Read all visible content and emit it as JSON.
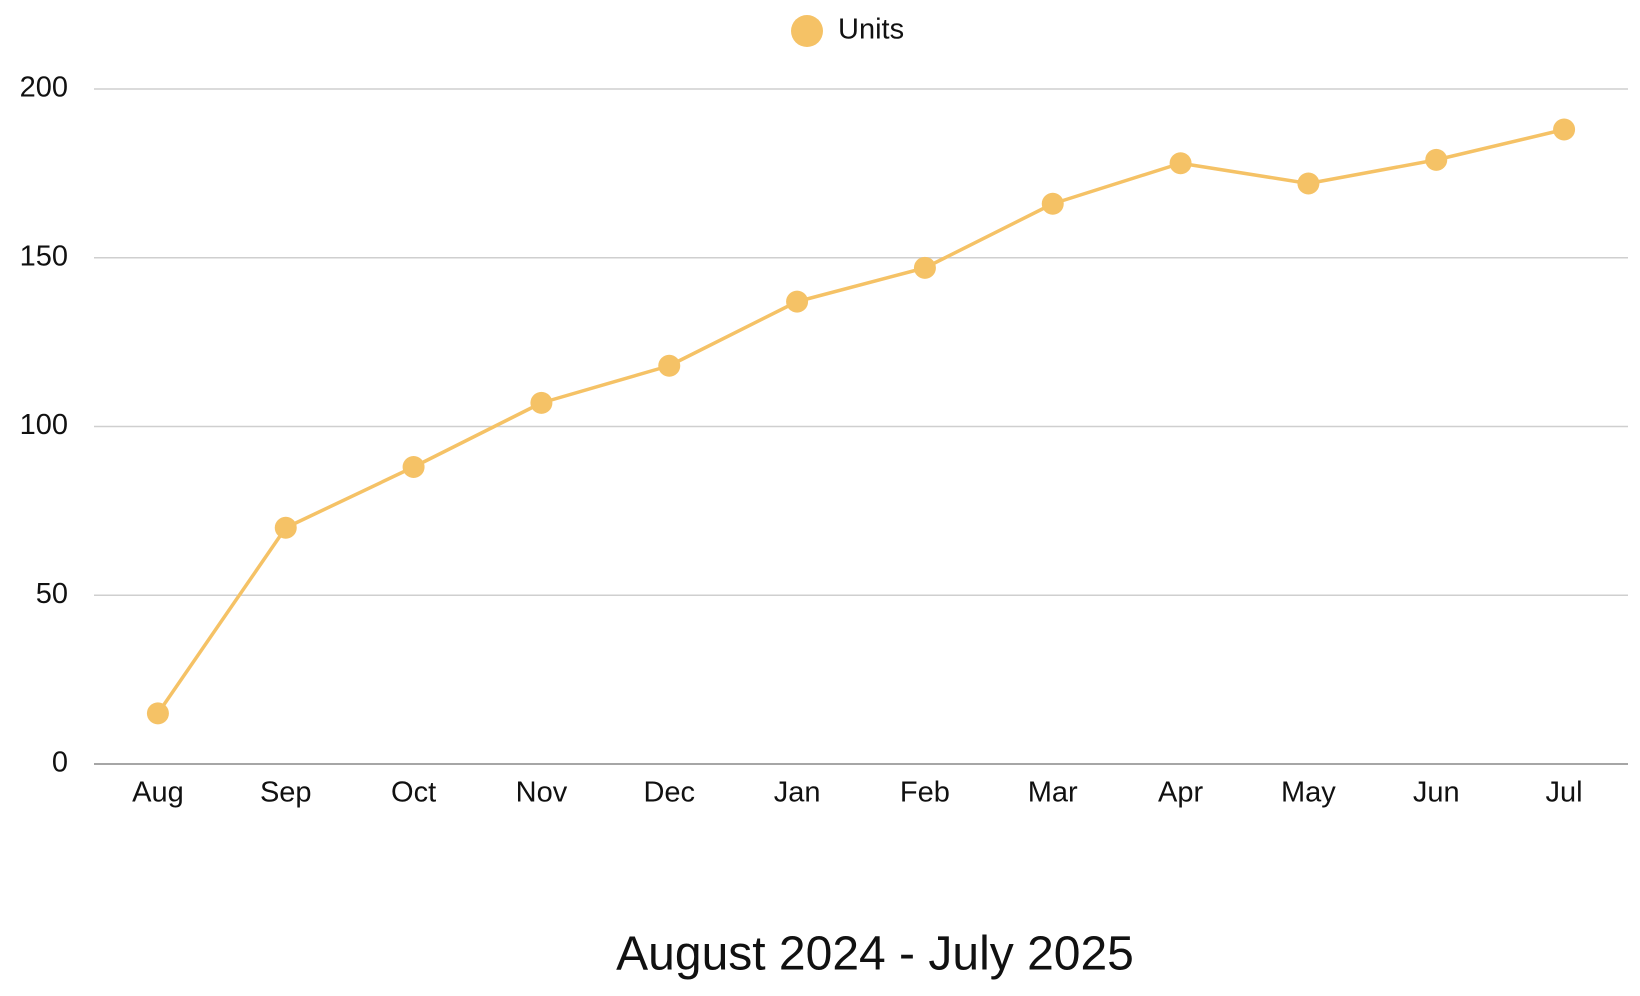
{
  "chart_data": {
    "type": "line",
    "xlabel": "August 2024 - July 2025",
    "categories": [
      "Aug",
      "Sep",
      "Oct",
      "Nov",
      "Dec",
      "Jan",
      "Feb",
      "Mar",
      "Apr",
      "May",
      "Jun",
      "Jul"
    ],
    "series": [
      {
        "name": "Units",
        "color": "#f5c266",
        "values": [
          15,
          70,
          88,
          107,
          118,
          137,
          147,
          166,
          178,
          172,
          179,
          188
        ]
      }
    ],
    "ylim": [
      0,
      200
    ],
    "yticks": [
      0,
      50,
      100,
      150,
      200
    ],
    "grid": true,
    "legend": "top"
  }
}
